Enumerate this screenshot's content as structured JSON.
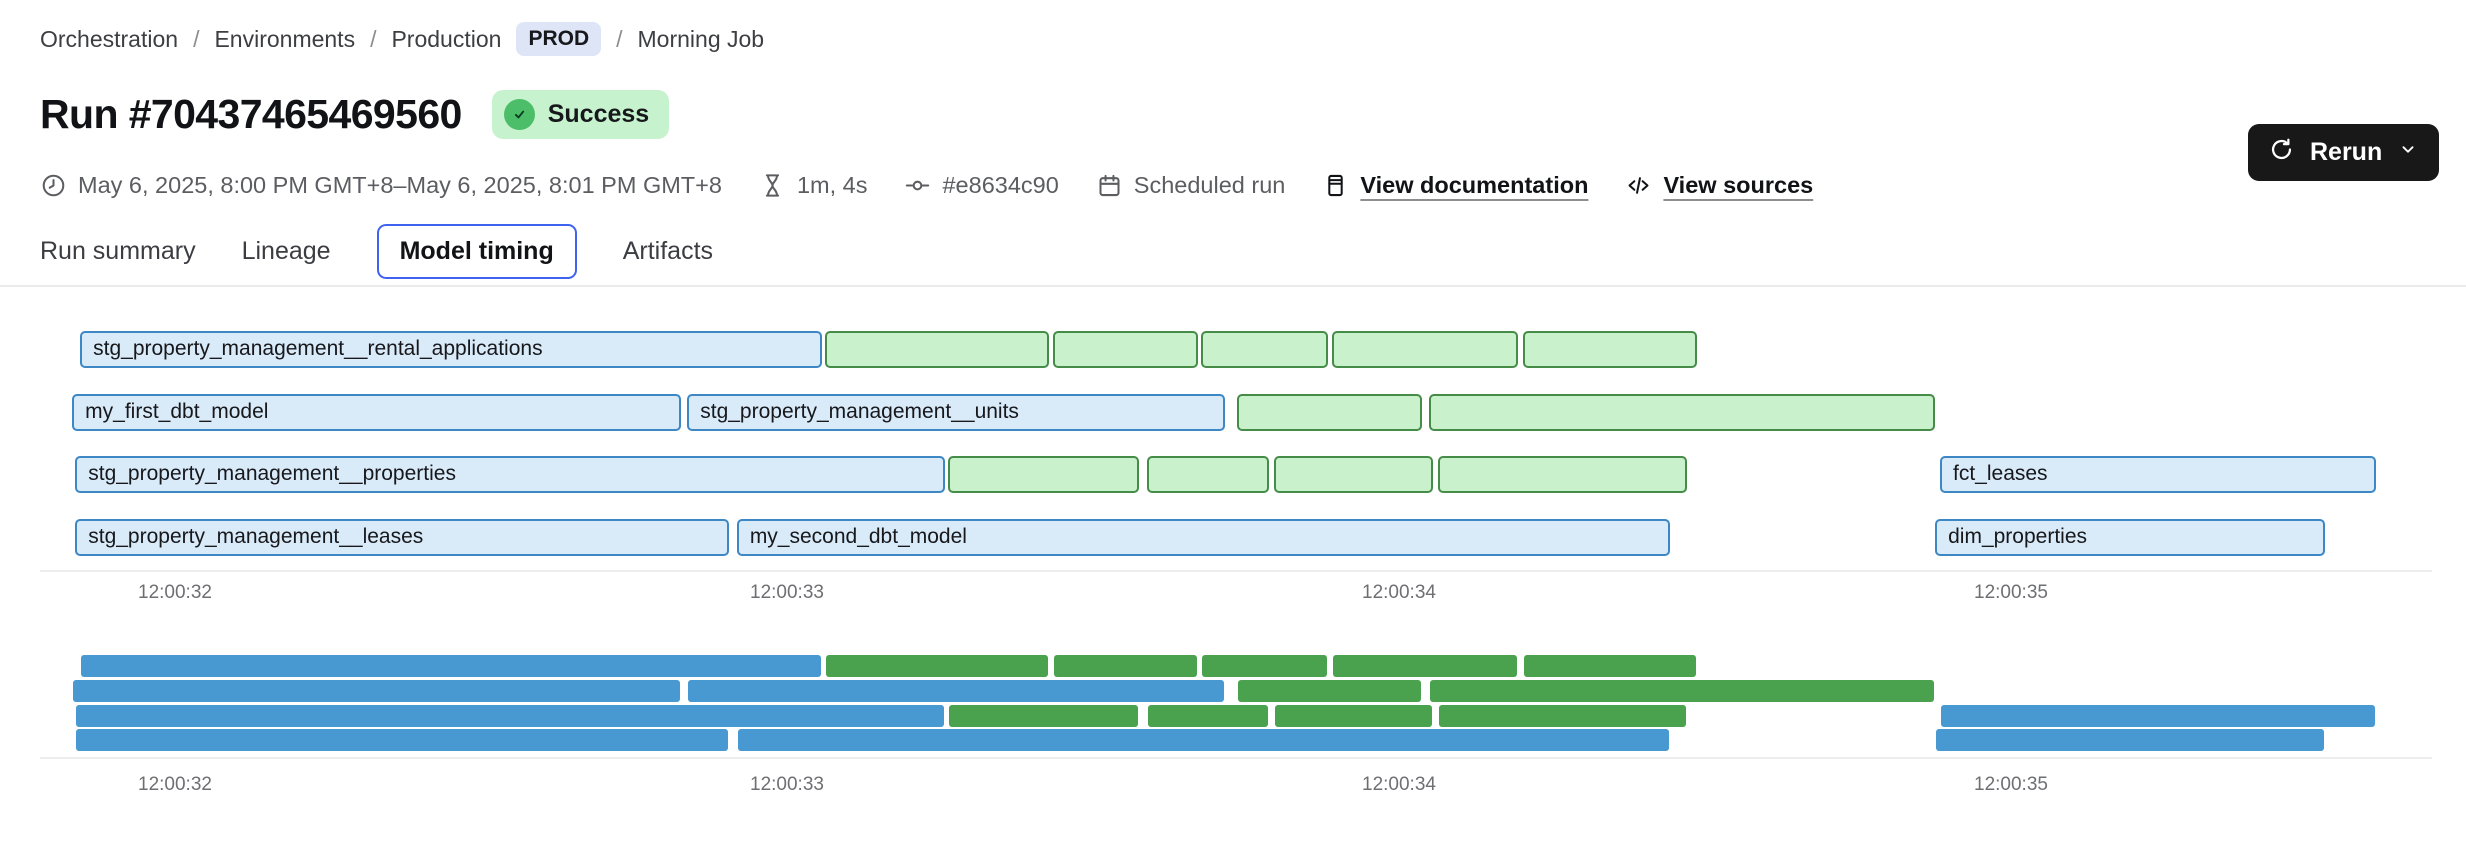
{
  "breadcrumb": {
    "separator": "/",
    "items": [
      {
        "label": "Orchestration"
      },
      {
        "label": "Environments"
      },
      {
        "label": "Production",
        "badge": "PROD"
      },
      {
        "label": "Morning Job"
      }
    ]
  },
  "header": {
    "title": "Run #70437465469560",
    "status_badge": "Success",
    "rerun_label": "Rerun"
  },
  "meta_items": [
    {
      "name": "run-time-range",
      "icon": "clock-icon",
      "text": "May 6, 2025, 8:00 PM GMT+8–May 6, 2025, 8:01 PM GMT+8",
      "link": false
    },
    {
      "name": "run-duration",
      "icon": "hourglass-icon",
      "text": "1m, 4s",
      "link": false
    },
    {
      "name": "commit-hash",
      "icon": "commit-icon",
      "text": "#e8634c90",
      "link": false
    },
    {
      "name": "trigger-type",
      "icon": "calendar-icon",
      "text": "Scheduled run",
      "link": false
    },
    {
      "name": "view-documentation-link",
      "icon": "document-icon",
      "text": "View documentation",
      "link": true
    },
    {
      "name": "view-sources-link",
      "icon": "code-icon",
      "text": "View sources",
      "link": true
    }
  ],
  "tabs": [
    {
      "label": "Run summary",
      "active": false
    },
    {
      "label": "Lineage",
      "active": false
    },
    {
      "label": "Model timing",
      "active": true
    },
    {
      "label": "Artifacts",
      "active": false
    }
  ],
  "colors": {
    "accent": "#3f63f0",
    "env_badge_bg": "#dde5f6",
    "status_bg": "#c6f2ce",
    "status_icon_bg": "#4cbd68",
    "bar_blue_fill": "#d9eaf9",
    "bar_blue_border": "#3d87c5",
    "bar_green_fill": "#c9f1cb",
    "bar_green_border": "#468c49",
    "minimap_blue": "#4899d1",
    "minimap_green": "#4aa24f"
  },
  "chart_data": {
    "type": "gantt",
    "title": "Model timing",
    "x_axis": {
      "unit": "time (hh:mm:ss)",
      "ticks": [
        {
          "t": 32,
          "label": "12:00:32"
        },
        {
          "t": 33,
          "label": "12:00:33"
        },
        {
          "t": 34,
          "label": "12:00:34"
        },
        {
          "t": 35,
          "label": "12:00:35"
        }
      ]
    },
    "legend": {
      "blue": "labeled model bars",
      "green": "unlabeled bars"
    },
    "rows": [
      {
        "name": "row-1",
        "bars": [
          {
            "kind": "blue",
            "label": "stg_property_management__rental_applications",
            "start": 31.845,
            "end": 33.057
          },
          {
            "kind": "green",
            "start": 33.062,
            "end": 33.428
          },
          {
            "kind": "green",
            "start": 33.435,
            "end": 33.672
          },
          {
            "kind": "green",
            "start": 33.676,
            "end": 33.884
          },
          {
            "kind": "green",
            "start": 33.89,
            "end": 34.194
          },
          {
            "kind": "green",
            "start": 34.203,
            "end": 34.487
          }
        ]
      },
      {
        "name": "row-2",
        "bars": [
          {
            "kind": "blue",
            "label": "my_first_dbt_model",
            "start": 31.832,
            "end": 32.827
          },
          {
            "kind": "blue",
            "label": "stg_property_management__units",
            "start": 32.837,
            "end": 33.716
          },
          {
            "kind": "green",
            "start": 33.735,
            "end": 34.038
          },
          {
            "kind": "green",
            "start": 34.049,
            "end": 34.876
          }
        ]
      },
      {
        "name": "row-3",
        "bars": [
          {
            "kind": "blue",
            "label": "stg_property_management__properties",
            "start": 31.837,
            "end": 33.258
          },
          {
            "kind": "green",
            "start": 33.263,
            "end": 33.575
          },
          {
            "kind": "green",
            "start": 33.588,
            "end": 33.788
          },
          {
            "kind": "green",
            "start": 33.796,
            "end": 34.056
          },
          {
            "kind": "green",
            "start": 34.064,
            "end": 34.471
          },
          {
            "kind": "blue",
            "label": "fct_leases",
            "start": 34.884,
            "end": 35.597
          }
        ]
      },
      {
        "name": "row-4",
        "bars": [
          {
            "kind": "blue",
            "label": "stg_property_management__leases",
            "start": 31.837,
            "end": 32.905
          },
          {
            "kind": "blue",
            "label": "my_second_dbt_model",
            "start": 32.918,
            "end": 34.443
          },
          {
            "kind": "blue",
            "label": "dim_properties",
            "start": 34.876,
            "end": 35.513
          }
        ]
      }
    ]
  }
}
